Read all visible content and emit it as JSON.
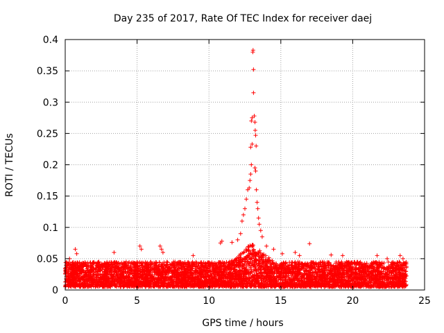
{
  "chart_data": {
    "type": "scatter",
    "title": "Day 235 of 2017, Rate Of TEC Index for receiver daej",
    "xlabel": "GPS time / hours",
    "ylabel": "ROTI / TECUs",
    "xlim": [
      0,
      25
    ],
    "ylim": [
      0,
      0.4
    ],
    "xticks": [
      0,
      5,
      10,
      15,
      20,
      25
    ],
    "yticks": [
      0,
      0.05,
      0.1,
      0.15,
      0.2,
      0.25,
      0.3,
      0.35,
      0.4
    ],
    "xtick_labels": [
      "0",
      "5",
      "10",
      "15",
      "20",
      "25"
    ],
    "ytick_labels": [
      "0",
      "0.05",
      "0.1",
      "0.15",
      "0.2",
      "0.25",
      "0.3",
      "0.35",
      "0.4"
    ],
    "grid": true,
    "marker": "+",
    "color": "#ff0000",
    "series": [
      {
        "name": "ROTI",
        "data_x_range": [
          0,
          23.75
        ],
        "background_band": [
          0.005,
          0.045
        ],
        "points": [
          {
            "x": 0.7,
            "y": 0.065
          },
          {
            "x": 0.8,
            "y": 0.058
          },
          {
            "x": 0.3,
            "y": 0.05
          },
          {
            "x": 3.4,
            "y": 0.06
          },
          {
            "x": 5.2,
            "y": 0.07
          },
          {
            "x": 5.3,
            "y": 0.065
          },
          {
            "x": 6.6,
            "y": 0.07
          },
          {
            "x": 6.7,
            "y": 0.065
          },
          {
            "x": 6.8,
            "y": 0.06
          },
          {
            "x": 8.9,
            "y": 0.055
          },
          {
            "x": 10.8,
            "y": 0.075
          },
          {
            "x": 10.9,
            "y": 0.078
          },
          {
            "x": 11.6,
            "y": 0.076
          },
          {
            "x": 12.0,
            "y": 0.08
          },
          {
            "x": 12.2,
            "y": 0.09
          },
          {
            "x": 12.3,
            "y": 0.11
          },
          {
            "x": 12.4,
            "y": 0.12
          },
          {
            "x": 12.5,
            "y": 0.13
          },
          {
            "x": 12.6,
            "y": 0.145
          },
          {
            "x": 12.7,
            "y": 0.16
          },
          {
            "x": 12.8,
            "y": 0.163
          },
          {
            "x": 12.85,
            "y": 0.175
          },
          {
            "x": 12.9,
            "y": 0.185
          },
          {
            "x": 12.95,
            "y": 0.2
          },
          {
            "x": 12.9,
            "y": 0.228
          },
          {
            "x": 13.0,
            "y": 0.233
          },
          {
            "x": 12.95,
            "y": 0.27
          },
          {
            "x": 13.0,
            "y": 0.275
          },
          {
            "x": 13.05,
            "y": 0.38
          },
          {
            "x": 13.07,
            "y": 0.383
          },
          {
            "x": 13.1,
            "y": 0.352
          },
          {
            "x": 13.1,
            "y": 0.315
          },
          {
            "x": 13.15,
            "y": 0.278
          },
          {
            "x": 13.2,
            "y": 0.268
          },
          {
            "x": 13.22,
            "y": 0.255
          },
          {
            "x": 13.25,
            "y": 0.247
          },
          {
            "x": 13.28,
            "y": 0.23
          },
          {
            "x": 13.2,
            "y": 0.195
          },
          {
            "x": 13.25,
            "y": 0.19
          },
          {
            "x": 13.3,
            "y": 0.16
          },
          {
            "x": 13.35,
            "y": 0.14
          },
          {
            "x": 13.4,
            "y": 0.13
          },
          {
            "x": 13.45,
            "y": 0.115
          },
          {
            "x": 13.5,
            "y": 0.105
          },
          {
            "x": 13.6,
            "y": 0.095
          },
          {
            "x": 13.7,
            "y": 0.085
          },
          {
            "x": 14.0,
            "y": 0.07
          },
          {
            "x": 14.5,
            "y": 0.065
          },
          {
            "x": 15.1,
            "y": 0.058
          },
          {
            "x": 16.0,
            "y": 0.06
          },
          {
            "x": 16.3,
            "y": 0.055
          },
          {
            "x": 17.0,
            "y": 0.074
          },
          {
            "x": 18.5,
            "y": 0.056
          },
          {
            "x": 19.3,
            "y": 0.055
          },
          {
            "x": 21.7,
            "y": 0.055
          },
          {
            "x": 22.4,
            "y": 0.05
          },
          {
            "x": 23.3,
            "y": 0.055
          },
          {
            "x": 23.5,
            "y": 0.05
          }
        ]
      }
    ]
  }
}
